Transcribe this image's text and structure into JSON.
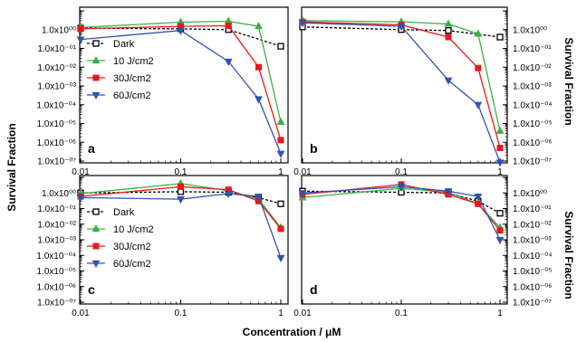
{
  "figure": {
    "y_title_left": "Survival Fraction",
    "y_title_right": "Survival Fraction",
    "x_title": "Concentration / μM",
    "colors": {
      "Dark": "#000000",
      "10 J/cm2": "#3cb043",
      "30J/cm2": "#e8191c",
      "60J/cm2": "#2f53b3"
    },
    "markers": {
      "Dark": "open-square",
      "10 J/cm2": "triangle-up",
      "30J/cm2": "square",
      "60J/cm2": "triangle-down"
    },
    "dashed": {
      "Dark": true,
      "10 J/cm2": false,
      "30J/cm2": false,
      "60J/cm2": false
    }
  },
  "chart_data": [
    {
      "type": "line",
      "panel": "a",
      "xscale": "log",
      "yscale": "log",
      "xlim": [
        0.01,
        1
      ],
      "ylim": [
        1e-07,
        10
      ],
      "x_tick_labels": [
        "0.01",
        "0.1",
        "1"
      ],
      "y_tick_labels": [
        "1.0x10⁰⁰",
        "1.0x10⁻⁰¹",
        "1.0x10⁻⁰²",
        "1.0x10⁻⁰³",
        "1.0x10⁻⁰⁴",
        "1.0x10⁻⁰⁵",
        "1.0x10⁻⁰⁶",
        "1.0x10⁻⁰⁷"
      ],
      "y_ticks_side": "left",
      "legend": "left",
      "series": [
        {
          "name": "Dark",
          "x": [
            0.01,
            0.1,
            0.3,
            1
          ],
          "y": [
            1.2,
            1.1,
            1.0,
            0.13
          ]
        },
        {
          "name": "10 J/cm2",
          "x": [
            0.01,
            0.1,
            0.3,
            0.6,
            1
          ],
          "y": [
            1.3,
            2.5,
            2.8,
            1.5,
            1.2e-05
          ]
        },
        {
          "name": "30J/cm2",
          "x": [
            0.01,
            0.1,
            0.3,
            0.6,
            1
          ],
          "y": [
            1.1,
            1.5,
            1.6,
            0.01,
            1.3e-06
          ]
        },
        {
          "name": "60J/cm2",
          "x": [
            0.01,
            0.1,
            0.3,
            0.6,
            1
          ],
          "y": [
            0.3,
            0.9,
            0.02,
            0.0002,
            2.5e-07
          ]
        }
      ]
    },
    {
      "type": "line",
      "panel": "b",
      "xscale": "log",
      "yscale": "log",
      "xlim": [
        0.01,
        1
      ],
      "ylim": [
        1e-07,
        10
      ],
      "x_tick_labels": [
        "0.01",
        "0.1",
        "1"
      ],
      "y_tick_labels": [
        "1.0x10⁰⁰",
        "1.0x10⁻⁰¹",
        "1.0x10⁻⁰²",
        "1.0x10⁻⁰³",
        "1.0x10⁻⁰⁴",
        "1.0x10⁻⁰⁵",
        "1.0x10⁻⁰⁶",
        "1.0x10⁻⁰⁷"
      ],
      "y_ticks_side": "right",
      "legend": "",
      "series": [
        {
          "name": "Dark",
          "x": [
            0.01,
            0.1,
            0.3,
            1
          ],
          "y": [
            1.4,
            1.0,
            0.9,
            0.4
          ]
        },
        {
          "name": "10 J/cm2",
          "x": [
            0.01,
            0.1,
            0.3,
            0.6,
            1
          ],
          "y": [
            3.0,
            2.6,
            2.0,
            0.6,
            4e-06
          ]
        },
        {
          "name": "30J/cm2",
          "x": [
            0.01,
            0.1,
            0.3,
            0.6,
            1
          ],
          "y": [
            2.6,
            1.8,
            0.4,
            0.009,
            5e-07
          ]
        },
        {
          "name": "60J/cm2",
          "x": [
            0.01,
            0.1,
            0.3,
            0.6,
            1
          ],
          "y": [
            2.3,
            1.5,
            0.002,
            0.0001,
            4e-08
          ]
        }
      ]
    },
    {
      "type": "line",
      "panel": "c",
      "xscale": "log",
      "yscale": "log",
      "xlim": [
        0.01,
        1
      ],
      "ylim": [
        1e-07,
        10
      ],
      "x_tick_labels": [
        "0.01",
        "0.1",
        "1"
      ],
      "y_tick_labels": [
        "1.0x10⁰⁰",
        "1.0x10⁻⁰¹",
        "1.0x10⁻⁰²",
        "1.0x10⁻⁰³",
        "1.0x10⁻⁰⁴",
        "1.0x10⁻⁰⁵",
        "1.0x10⁻⁰⁶",
        "1.0x10⁻⁰⁷"
      ],
      "y_ticks_side": "left",
      "legend": "left",
      "series": [
        {
          "name": "Dark",
          "x": [
            0.01,
            0.1,
            0.3,
            0.6,
            1
          ],
          "y": [
            1.0,
            1.2,
            1.1,
            0.5,
            0.2
          ]
        },
        {
          "name": "10 J/cm2",
          "x": [
            0.01,
            0.1,
            0.3,
            0.6,
            1
          ],
          "y": [
            0.9,
            4.0,
            1.4,
            0.4,
            0.006
          ]
        },
        {
          "name": "30J/cm2",
          "x": [
            0.01,
            0.1,
            0.3,
            0.6,
            1
          ],
          "y": [
            0.6,
            2.5,
            1.6,
            0.3,
            0.005
          ]
        },
        {
          "name": "60J/cm2",
          "x": [
            0.01,
            0.1,
            0.3,
            0.6,
            1
          ],
          "y": [
            0.5,
            0.4,
            0.9,
            0.6,
            7e-05
          ]
        }
      ]
    },
    {
      "type": "line",
      "panel": "d",
      "xscale": "log",
      "yscale": "log",
      "xlim": [
        0.01,
        1
      ],
      "ylim": [
        1e-07,
        10
      ],
      "x_tick_labels": [
        "0.01",
        "0.1",
        "1"
      ],
      "y_tick_labels": [
        "1.0x10⁰⁰",
        "1.0x10⁻⁰¹",
        "1.0x10⁻⁰²",
        "1.0x10⁻⁰³",
        "1.0x10⁻⁰⁴",
        "1.0x10⁻⁰⁵",
        "1.0x10⁻⁰⁶",
        "1.0x10⁻⁰⁷"
      ],
      "y_ticks_side": "right",
      "legend": "",
      "series": [
        {
          "name": "Dark",
          "x": [
            0.01,
            0.1,
            0.3,
            0.6,
            1
          ],
          "y": [
            1.3,
            1.1,
            1.0,
            0.3,
            0.05
          ]
        },
        {
          "name": "10 J/cm2",
          "x": [
            0.01,
            0.1,
            0.3,
            0.6,
            1
          ],
          "y": [
            0.5,
            2.0,
            1.1,
            0.2,
            0.006
          ]
        },
        {
          "name": "30J/cm2",
          "x": [
            0.01,
            0.1,
            0.3,
            0.6,
            1
          ],
          "y": [
            0.8,
            3.5,
            0.8,
            0.2,
            0.004
          ]
        },
        {
          "name": "60J/cm2",
          "x": [
            0.01,
            0.1,
            0.3,
            0.6,
            1
          ],
          "y": [
            1.0,
            2.5,
            1.3,
            0.6,
            0.001
          ]
        }
      ]
    }
  ]
}
